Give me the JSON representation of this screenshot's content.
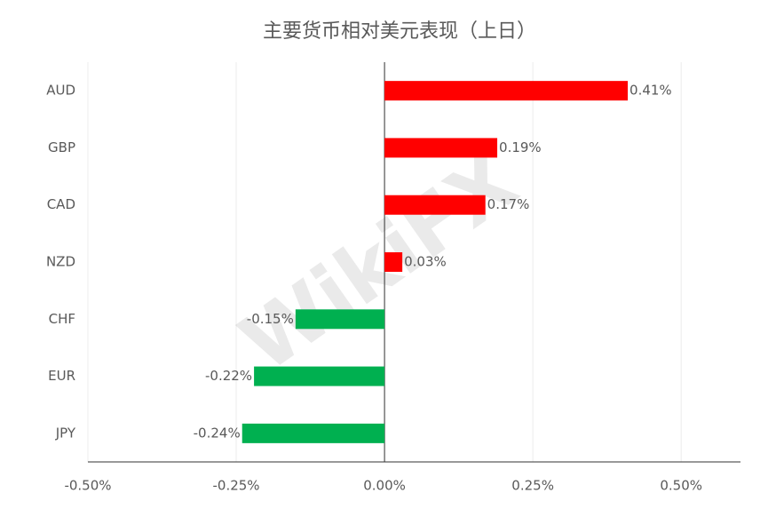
{
  "chart_data": {
    "type": "hbar",
    "title": "主要货币相对美元表现（上日）",
    "categories": [
      "AUD",
      "GBP",
      "CAD",
      "NZD",
      "CHF",
      "EUR",
      "JPY"
    ],
    "values": [
      0.41,
      0.19,
      0.17,
      0.03,
      -0.15,
      -0.22,
      -0.24
    ],
    "value_labels": [
      "0.41%",
      "0.19%",
      "0.17%",
      "0.03%",
      "-0.15%",
      "-0.22%",
      "-0.24%"
    ],
    "colors": [
      "#ff0000",
      "#ff0000",
      "#ff0000",
      "#ff0000",
      "#00b050",
      "#00b050",
      "#00b050"
    ],
    "xlim": [
      -0.5,
      0.6
    ],
    "xticks": [
      {
        "value": -0.5,
        "label": "-0.50%"
      },
      {
        "value": -0.25,
        "label": "-0.25%"
      },
      {
        "value": 0,
        "label": "0.00%"
      },
      {
        "value": 0.25,
        "label": "0.25%"
      },
      {
        "value": 0.5,
        "label": "0.50%"
      }
    ],
    "grid": true,
    "watermark": "WikiFX"
  }
}
